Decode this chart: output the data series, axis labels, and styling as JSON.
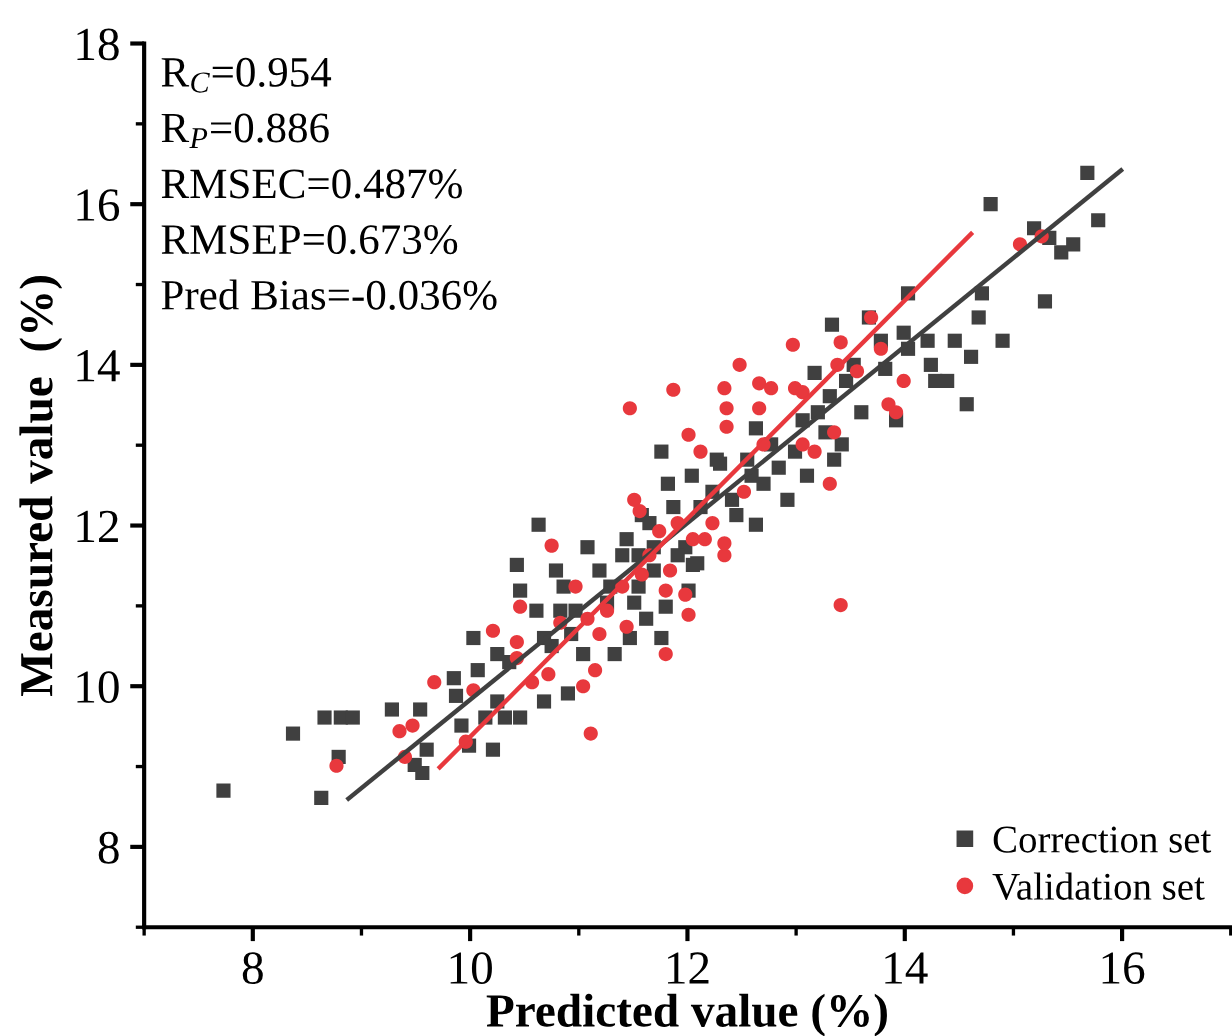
{
  "chart_data": {
    "type": "scatter",
    "xlabel": "Predicted value (%)",
    "ylabel": "Measured value  (%)",
    "xlim": [
      7,
      17
    ],
    "ylim": [
      7,
      18
    ],
    "xticks": [
      8,
      10,
      12,
      14,
      16
    ],
    "yticks": [
      8,
      10,
      12,
      14,
      16,
      18
    ],
    "grid": false,
    "legend": "bottom right",
    "annotations": [
      "R$_{C}$=0.954",
      "R$_{P}$=0.886",
      "RMSEC=0.487%",
      "RMSEP=0.673%",
      "Pred Bias=-0.036%"
    ],
    "series": [
      {
        "name": "Correction set",
        "color": "#404040",
        "marker": "square",
        "x": [
          7.73,
          8.37,
          8.63,
          8.79,
          8.66,
          8.81,
          8.92,
          9.28,
          9.54,
          9.49,
          9.56,
          9.6,
          9.85,
          9.87,
          9.92,
          9.99,
          10.03,
          10.07,
          10.14,
          10.21,
          10.25,
          10.32,
          10.46,
          10.25,
          10.36,
          10.43,
          10.46,
          10.61,
          10.63,
          10.68,
          10.75,
          10.79,
          10.86,
          10.9,
          10.97,
          11.04,
          11.08,
          11.19,
          11.26,
          11.33,
          11.4,
          11.44,
          11.47,
          11.51,
          11.58,
          11.65,
          11.69,
          11.76,
          11.8,
          11.76,
          11.82,
          11.87,
          11.98,
          12.01,
          12.04,
          12.09,
          12.12,
          12.23,
          12.27,
          12.3,
          12.41,
          12.45,
          12.55,
          12.59,
          12.63,
          12.63,
          12.7,
          12.77,
          12.84,
          12.92,
          12.99,
          13.06,
          13.1,
          13.17,
          13.2,
          13.27,
          13.31,
          13.33,
          13.35,
          13.42,
          13.46,
          13.53,
          13.6,
          13.67,
          13.78,
          13.82,
          13.92,
          13.99,
          14.03,
          14.03,
          14.21,
          14.24,
          14.28,
          14.39,
          14.46,
          14.57,
          14.61,
          14.68,
          14.71,
          14.79,
          14.9,
          15.19,
          15.29,
          15.33,
          15.44,
          15.55,
          15.68,
          15.78,
          11.29,
          11.55,
          11.62,
          11.55,
          11.69,
          11.91,
          12.05,
          10.83,
          10.93,
          10.68
        ],
        "values": [
          8.7,
          9.41,
          8.61,
          9.12,
          9.61,
          9.61,
          9.61,
          9.71,
          9.71,
          9.02,
          8.92,
          9.21,
          10.1,
          9.88,
          9.51,
          9.26,
          10.6,
          10.2,
          9.61,
          9.21,
          9.81,
          9.61,
          9.61,
          10.4,
          10.3,
          11.51,
          11.19,
          10.94,
          12.01,
          9.81,
          10.5,
          11.44,
          11.24,
          9.91,
          10.94,
          10.4,
          11.73,
          11.44,
          11.04,
          10.4,
          11.63,
          11.83,
          10.6,
          11.04,
          12.13,
          12.03,
          11.44,
          10.6,
          10.99,
          12.92,
          12.52,
          12.23,
          11.73,
          11.19,
          12.62,
          11.53,
          12.23,
          12.42,
          12.82,
          12.77,
          12.32,
          12.13,
          12.82,
          12.62,
          12.01,
          13.21,
          12.52,
          13.01,
          12.72,
          12.32,
          12.92,
          13.31,
          12.62,
          13.9,
          13.41,
          13.16,
          13.61,
          14.5,
          12.82,
          13.01,
          13.8,
          14.0,
          13.41,
          14.59,
          14.3,
          13.95,
          13.31,
          14.4,
          14.2,
          14.89,
          14.3,
          14.0,
          13.8,
          13.8,
          14.3,
          13.51,
          14.1,
          14.59,
          14.89,
          16.0,
          14.3,
          15.7,
          14.79,
          15.58,
          15.4,
          15.5,
          16.39,
          15.8,
          11.24,
          11.24,
          10.84,
          11.63,
          11.73,
          11.63,
          11.51,
          10.94,
          10.65,
          10.6
        ]
      },
      {
        "name": "Validation set",
        "color": "#e8383d",
        "marker": "circle",
        "x": [
          8.77,
          9.35,
          9.4,
          9.47,
          9.67,
          9.96,
          10.03,
          10.21,
          10.43,
          10.46,
          10.43,
          10.57,
          10.72,
          10.75,
          10.83,
          10.97,
          11.04,
          11.08,
          11.11,
          11.15,
          11.19,
          11.26,
          11.4,
          11.44,
          11.47,
          11.51,
          11.56,
          11.58,
          11.65,
          11.74,
          11.8,
          11.8,
          11.84,
          11.87,
          11.91,
          11.98,
          12.01,
          12.01,
          12.05,
          12.12,
          12.16,
          12.23,
          12.34,
          12.36,
          12.36,
          12.34,
          12.34,
          12.48,
          12.52,
          12.66,
          12.66,
          12.7,
          12.77,
          12.97,
          12.99,
          13.06,
          13.06,
          13.17,
          13.31,
          13.35,
          13.38,
          13.41,
          13.41,
          13.56,
          13.69,
          13.78,
          13.85,
          13.92,
          13.99,
          15.06,
          15.26
        ],
        "values": [
          9.01,
          9.44,
          9.12,
          9.51,
          10.05,
          9.31,
          9.95,
          10.69,
          10.55,
          10.99,
          10.35,
          10.05,
          10.15,
          11.75,
          10.79,
          11.24,
          10.0,
          10.84,
          9.41,
          10.2,
          10.65,
          10.94,
          11.24,
          10.74,
          13.46,
          12.32,
          12.18,
          11.39,
          11.63,
          11.93,
          11.19,
          10.4,
          11.44,
          13.69,
          12.03,
          11.14,
          13.13,
          10.89,
          11.83,
          12.92,
          11.83,
          12.03,
          13.71,
          13.23,
          13.46,
          11.63,
          11.78,
          14.0,
          12.42,
          13.77,
          13.46,
          13.01,
          13.71,
          14.25,
          13.71,
          13.66,
          13.01,
          12.92,
          12.52,
          13.16,
          14.0,
          14.28,
          11.01,
          13.92,
          14.59,
          14.2,
          13.51,
          13.41,
          13.8,
          15.5,
          15.6
        ]
      },
      {
        "type": "line",
        "color": "#404040",
        "x": [
          8.88,
          15.99
        ],
        "values": [
          8.6,
          16.42
        ]
      },
      {
        "type": "line",
        "color": "#e8383d",
        "x": [
          9.72,
          14.61
        ],
        "values": [
          8.99,
          15.63
        ]
      }
    ]
  }
}
